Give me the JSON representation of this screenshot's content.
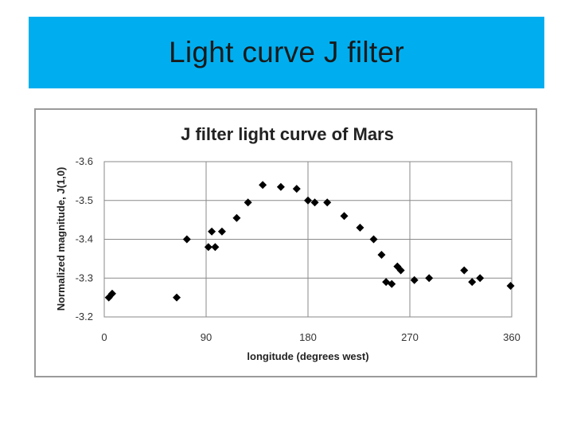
{
  "slide": {
    "title": "Light curve J filter"
  },
  "chart_data": {
    "type": "scatter",
    "title": "J filter light curve of Mars",
    "xlabel": "longitude (degrees west)",
    "ylabel": "Normalized magnitude, J(1,0)",
    "xlim": [
      0,
      360
    ],
    "ylim": [
      -3.2,
      -3.6
    ],
    "y_inverted": true,
    "grid": true,
    "marker": "diamond",
    "marker_color": "#000000",
    "xticks": [
      0,
      90,
      180,
      270,
      360
    ],
    "xtick_labels": [
      "0",
      "90",
      "180",
      "270",
      "360"
    ],
    "yticks": [
      -3.6,
      -3.5,
      -3.4,
      -3.3,
      -3.2
    ],
    "ytick_labels": [
      "-3.6",
      "-3.5",
      "-3.4",
      "-3.3",
      "-3.2"
    ],
    "series": [
      {
        "points": [
          [
            4,
            -3.25
          ],
          [
            7,
            -3.26
          ],
          [
            64,
            -3.25
          ],
          [
            73,
            -3.4
          ],
          [
            92,
            -3.38
          ],
          [
            95,
            -3.42
          ],
          [
            98,
            -3.38
          ],
          [
            104,
            -3.42
          ],
          [
            117,
            -3.455
          ],
          [
            127,
            -3.495
          ],
          [
            140,
            -3.54
          ],
          [
            156,
            -3.535
          ],
          [
            170,
            -3.53
          ],
          [
            180,
            -3.5
          ],
          [
            186,
            -3.495
          ],
          [
            197,
            -3.495
          ],
          [
            212,
            -3.46
          ],
          [
            226,
            -3.43
          ],
          [
            238,
            -3.4
          ],
          [
            245,
            -3.36
          ],
          [
            249,
            -3.29
          ],
          [
            254,
            -3.285
          ],
          [
            259,
            -3.33
          ],
          [
            262,
            -3.32
          ],
          [
            274,
            -3.295
          ],
          [
            287,
            -3.3
          ],
          [
            318,
            -3.32
          ],
          [
            325,
            -3.29
          ],
          [
            332,
            -3.3
          ],
          [
            359,
            -3.28
          ]
        ]
      }
    ]
  }
}
